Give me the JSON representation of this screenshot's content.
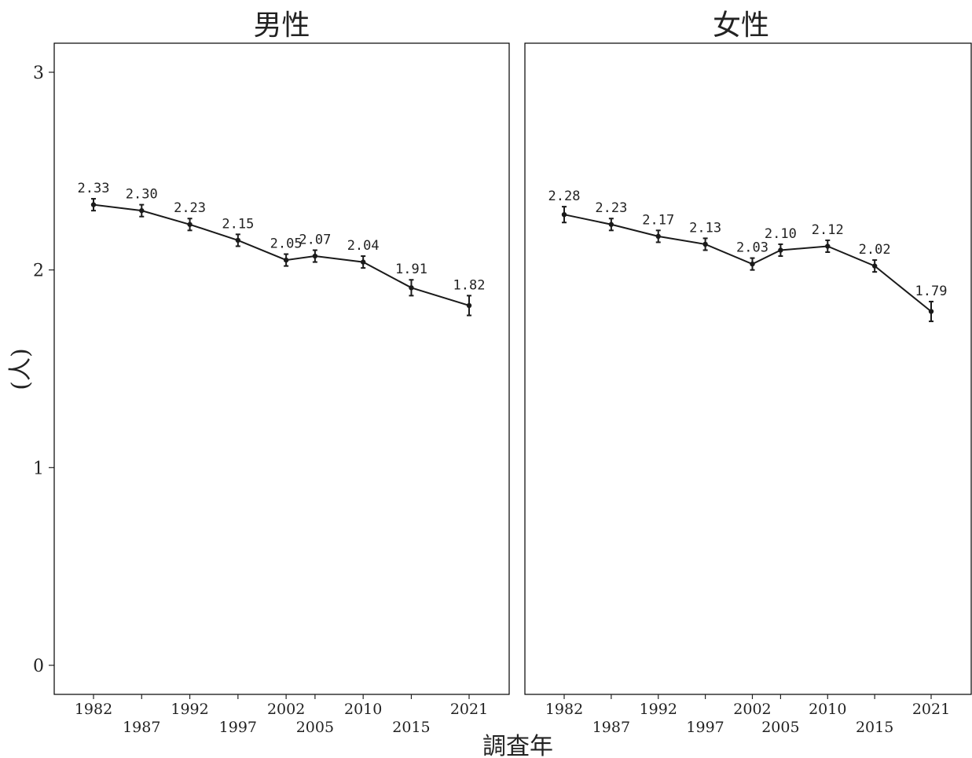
{
  "chart_data": {
    "type": "line",
    "xlabel": "調査年",
    "ylabel": "(人)",
    "ylim": [
      0,
      3
    ],
    "yticks": [
      0,
      1,
      2,
      3
    ],
    "x": [
      "1982",
      "1987",
      "1992",
      "1997",
      "2002",
      "2005",
      "2010",
      "2015",
      "2021"
    ],
    "line_color": "#1a1a1a",
    "panels": [
      {
        "title": "男性",
        "values": [
          2.33,
          2.3,
          2.23,
          2.15,
          2.05,
          2.07,
          2.04,
          1.91,
          1.82
        ],
        "labels": [
          "2.33",
          "2.30",
          "2.23",
          "2.15",
          "2.05",
          "2.07",
          "2.04",
          "1.91",
          "1.82"
        ],
        "error": [
          0.03,
          0.03,
          0.03,
          0.03,
          0.03,
          0.03,
          0.03,
          0.04,
          0.05
        ]
      },
      {
        "title": "女性",
        "values": [
          2.28,
          2.23,
          2.17,
          2.13,
          2.03,
          2.1,
          2.12,
          2.02,
          1.79
        ],
        "labels": [
          "2.28",
          "2.23",
          "2.17",
          "2.13",
          "2.03",
          "2.10",
          "2.12",
          "2.02",
          "1.79"
        ],
        "error": [
          0.04,
          0.03,
          0.03,
          0.03,
          0.03,
          0.03,
          0.03,
          0.03,
          0.05
        ]
      }
    ]
  }
}
